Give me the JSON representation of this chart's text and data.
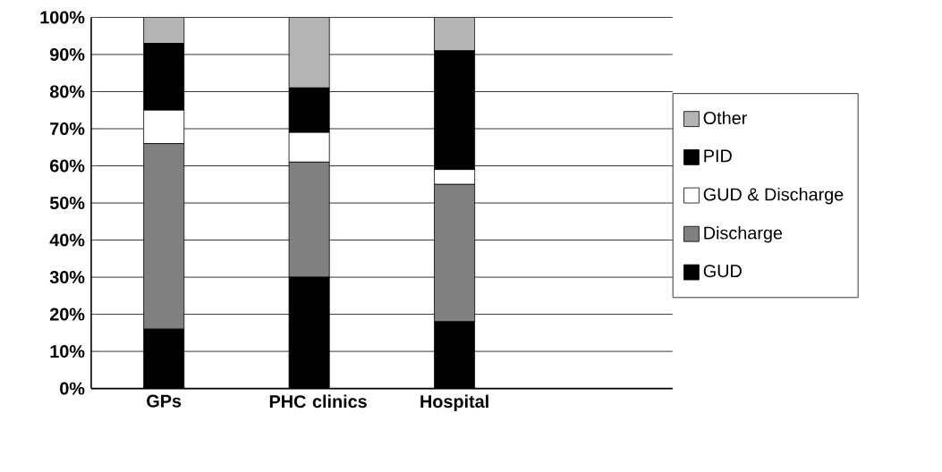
{
  "chart_data": {
    "type": "bar",
    "stacked": true,
    "categories": [
      "GPs",
      "PHC clinics",
      "Hospital"
    ],
    "series": [
      {
        "name": "GUD",
        "color": "#000000",
        "values": [
          16,
          30,
          18
        ]
      },
      {
        "name": "Discharge",
        "color": "#808080",
        "values": [
          50,
          31,
          37
        ]
      },
      {
        "name": "GUD & Discharge",
        "color": "#ffffff",
        "values": [
          9,
          8,
          4
        ]
      },
      {
        "name": "PID",
        "color": "#000000",
        "values": [
          18,
          12,
          32
        ]
      },
      {
        "name": "Other",
        "color": "#b4b4b4",
        "values": [
          7,
          19,
          9
        ]
      }
    ],
    "ylim": [
      0,
      100
    ],
    "yticks": [
      {
        "value": 0,
        "label": "0%"
      },
      {
        "value": 10,
        "label": "10%"
      },
      {
        "value": 20,
        "label": "20%"
      },
      {
        "value": 30,
        "label": "30%"
      },
      {
        "value": 40,
        "label": "40%"
      },
      {
        "value": 50,
        "label": "50%"
      },
      {
        "value": 60,
        "label": "60%"
      },
      {
        "value": 70,
        "label": "70%"
      },
      {
        "value": 80,
        "label": "80%"
      },
      {
        "value": 90,
        "label": "90%"
      },
      {
        "value": 100,
        "label": "100%"
      }
    ],
    "grid": "y",
    "legend": "right"
  }
}
